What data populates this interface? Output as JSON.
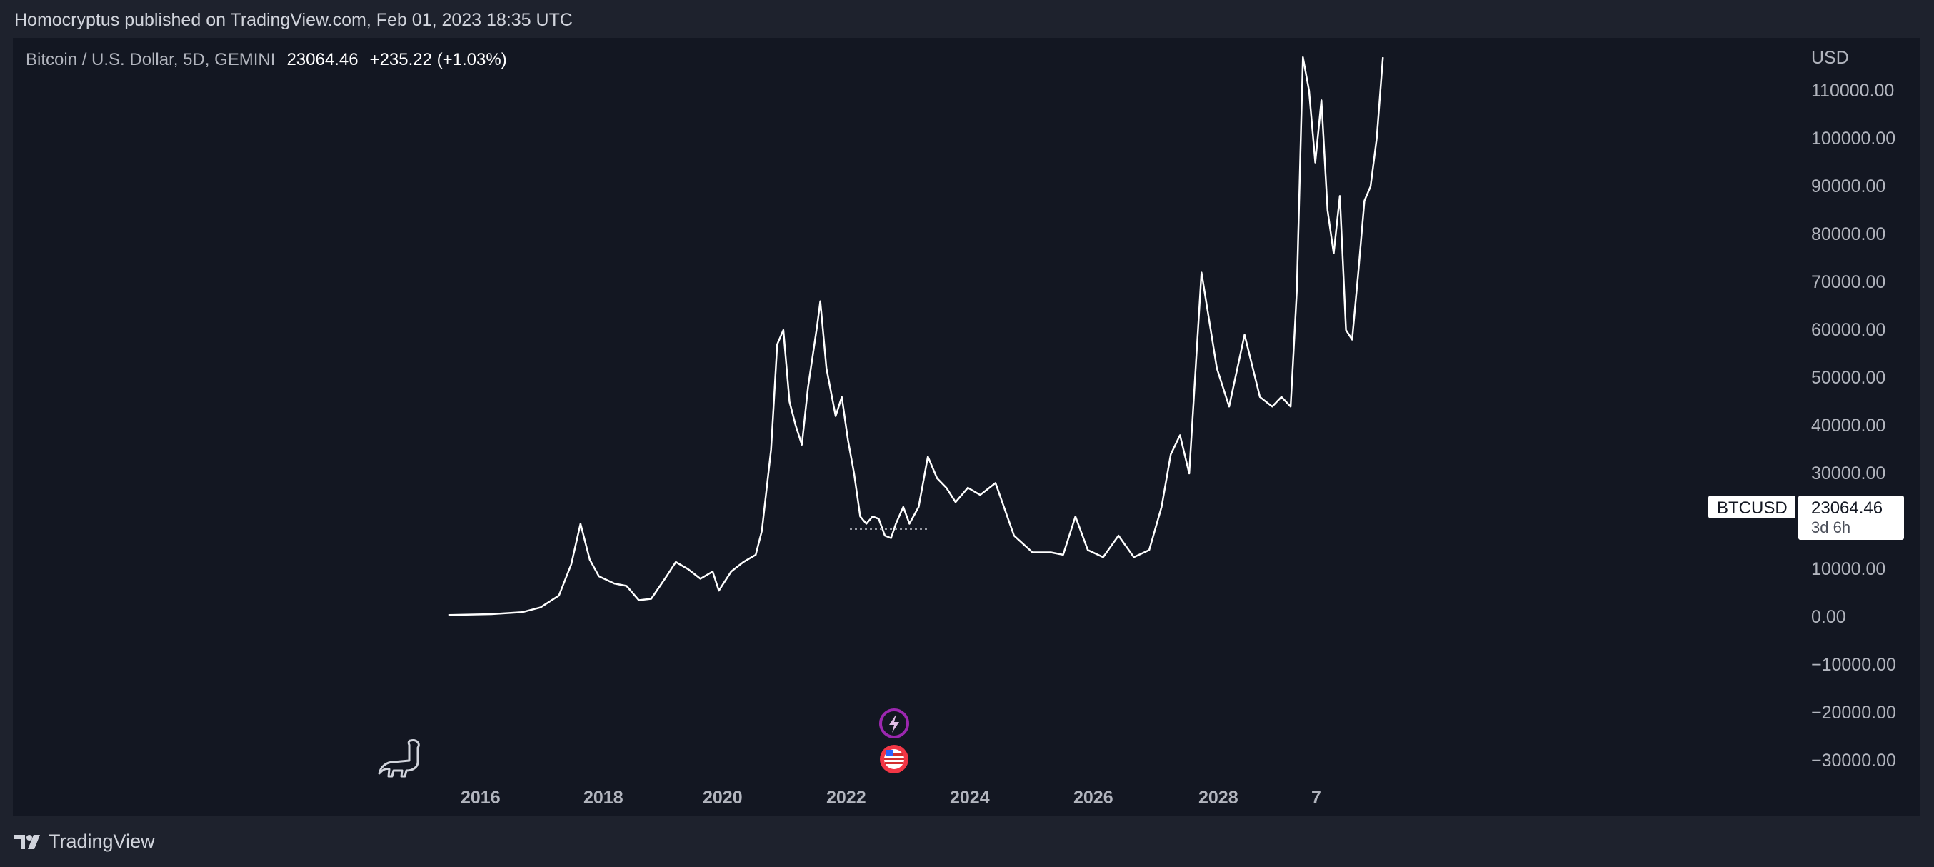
{
  "header": {
    "text": "Homocryptus published on TradingView.com, Feb 01, 2023 18:35 UTC"
  },
  "legend": {
    "symbol": "Bitcoin / U.S. Dollar, 5D, GEMINI",
    "price": "23064.46",
    "change": "+235.22 (+1.03%)"
  },
  "price_label": {
    "ticker": "BTCUSD",
    "price": "23064.46",
    "countdown": "3d 6h"
  },
  "footer": {
    "brand": "TradingView"
  },
  "colors": {
    "page_bg": "#1e222d",
    "chart_bg": "#131722",
    "line": "#ffffff",
    "axis_text": "#b2b5be",
    "lightning_badge": "#9c27b0",
    "flag_badge": "#f23645"
  },
  "icons": [
    "dinosaur-icon",
    "lightning-icon",
    "us-flag-icon",
    "tradingview-logo-icon"
  ],
  "chart_data": {
    "type": "line",
    "yaxis_label": "USD",
    "ylim": [
      -35000,
      117000
    ],
    "y_ticks": [
      "110000.00",
      "100000.00",
      "90000.00",
      "80000.00",
      "70000.00",
      "60000.00",
      "50000.00",
      "40000.00",
      "30000.00",
      "20000.00",
      "10000.00",
      "0.00",
      "−10000.00",
      "−20000.00",
      "−30000.00"
    ],
    "x_ticks": [
      "2016",
      "2018",
      "2020",
      "2022",
      "2024",
      "2026",
      "2028",
      "7"
    ],
    "xlim": [
      2014.7,
      2031.5
    ],
    "series": [
      {
        "x": [
          2015.8,
          2016.5,
          2017.0,
          2017.3,
          2017.6,
          2017.8,
          2017.95,
          2018.1,
          2018.25,
          2018.5,
          2018.7,
          2018.9,
          2019.1,
          2019.35,
          2019.5,
          2019.7,
          2019.9,
          2020.1,
          2020.2,
          2020.4,
          2020.6,
          2020.8,
          2020.9,
          2021.05,
          2021.15,
          2021.25,
          2021.35,
          2021.45,
          2021.55,
          2021.65,
          2021.8,
          2021.85,
          2021.95,
          2022.1,
          2022.2,
          2022.3,
          2022.4,
          2022.5,
          2022.6,
          2022.7,
          2022.8,
          2022.9,
          2023.0,
          2023.08,
          2023.2,
          2023.3,
          2023.45,
          2023.6,
          2023.75,
          2023.9,
          2024.05,
          2024.25,
          2024.45,
          2024.7,
          2025.0,
          2025.3,
          2025.6,
          2025.8,
          2026.0,
          2026.2,
          2026.45,
          2026.7,
          2026.95,
          2027.2,
          2027.4,
          2027.55,
          2027.7,
          2027.85,
          2028.05,
          2028.3,
          2028.5,
          2028.75,
          2029.0,
          2029.2,
          2029.35,
          2029.5,
          2029.6,
          2029.7,
          2029.8,
          2029.9,
          2030.0,
          2030.1,
          2030.2,
          2030.3,
          2030.4,
          2030.5,
          2030.6,
          2030.7,
          2030.8,
          2030.9,
          2031.0
        ],
        "y": [
          400,
          600,
          1000,
          2000,
          4500,
          11000,
          19500,
          12000,
          8500,
          7000,
          6500,
          3500,
          3800,
          8500,
          11500,
          10000,
          8000,
          9500,
          5500,
          9500,
          11500,
          13000,
          18000,
          35000,
          57000,
          60000,
          45000,
          40000,
          36000,
          48000,
          61000,
          66000,
          52000,
          42000,
          46000,
          37000,
          30000,
          21000,
          19500,
          21000,
          20500,
          17000,
          16500,
          19500,
          23000,
          19500,
          23000,
          33500,
          29000,
          27000,
          24000,
          27000,
          25500,
          28000,
          17000,
          13500,
          13500,
          13000,
          21000,
          14000,
          12500,
          17000,
          12500,
          14000,
          23000,
          34000,
          38000,
          30000,
          72000,
          52000,
          44000,
          59000,
          46000,
          44000,
          46000,
          44000,
          68000,
          117000,
          110000,
          95000,
          108000,
          85000,
          76000,
          88000,
          60000,
          58000,
          72000,
          87000,
          90000,
          100000,
          117000
        ]
      }
    ]
  }
}
